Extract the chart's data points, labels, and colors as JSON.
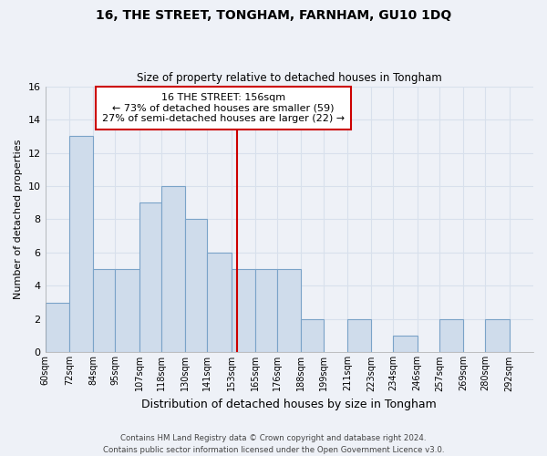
{
  "title": "16, THE STREET, TONGHAM, FARNHAM, GU10 1DQ",
  "subtitle": "Size of property relative to detached houses in Tongham",
  "xlabel": "Distribution of detached houses by size in Tongham",
  "ylabel": "Number of detached properties",
  "bin_labels": [
    "60sqm",
    "72sqm",
    "84sqm",
    "95sqm",
    "107sqm",
    "118sqm",
    "130sqm",
    "141sqm",
    "153sqm",
    "165sqm",
    "176sqm",
    "188sqm",
    "199sqm",
    "211sqm",
    "223sqm",
    "234sqm",
    "246sqm",
    "257sqm",
    "269sqm",
    "280sqm",
    "292sqm"
  ],
  "bin_edges": [
    60,
    72,
    84,
    95,
    107,
    118,
    130,
    141,
    153,
    165,
    176,
    188,
    199,
    211,
    223,
    234,
    246,
    257,
    269,
    280,
    292,
    304
  ],
  "counts": [
    3,
    13,
    5,
    5,
    9,
    10,
    8,
    6,
    5,
    5,
    5,
    2,
    0,
    2,
    0,
    1,
    0,
    2,
    0,
    2,
    0
  ],
  "bar_color": "#cfdceb",
  "bar_edge_color": "#7aa3c8",
  "reference_line_x": 156,
  "reference_line_color": "#cc0000",
  "annotation_line1": "16 THE STREET: 156sqm",
  "annotation_line2": "← 73% of detached houses are smaller (59)",
  "annotation_line3": "27% of semi-detached houses are larger (22) →",
  "annotation_box_edge_color": "#cc0000",
  "annotation_box_fill": "#ffffff",
  "grid_color": "#d8e0ec",
  "bg_color": "#eef1f7",
  "plot_bg_color": "#eef1f7",
  "ylim": [
    0,
    16
  ],
  "yticks": [
    0,
    2,
    4,
    6,
    8,
    10,
    12,
    14,
    16
  ],
  "footer_line1": "Contains HM Land Registry data © Crown copyright and database right 2024.",
  "footer_line2": "Contains public sector information licensed under the Open Government Licence v3.0."
}
